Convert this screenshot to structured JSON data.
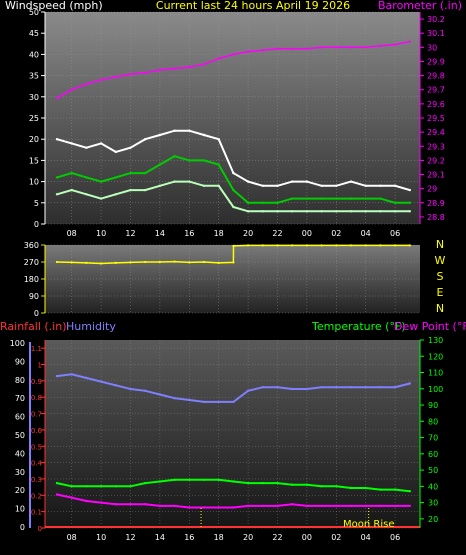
{
  "colors": {
    "white": "#ffffff",
    "yellow": "#ffff00",
    "magenta": "#ff00ff",
    "blue": "#7f7fff",
    "green": "#00ff00",
    "red": "#ff3333",
    "tick": "#dddd00",
    "gust": "#ffffff",
    "avg": "#00cc00",
    "speed": "#bbffbb"
  },
  "chart_data": [
    {
      "type": "line",
      "title": "Current last 24 hours April 19 2026",
      "left_label": "Windspeed (mph)",
      "right_label": "Barometer (.in)",
      "x_ticks": [
        "08",
        "10",
        "12",
        "14",
        "16",
        "18",
        "20",
        "22",
        "00",
        "02",
        "04",
        "06"
      ],
      "y_left_ticks": [
        "0",
        "5",
        "10",
        "15",
        "20",
        "25",
        "30",
        "35",
        "40",
        "45",
        "50"
      ],
      "y_left_range": [
        0,
        50
      ],
      "y_right_ticks": [
        "28.8",
        "28.9",
        "29",
        "29.1",
        "29.2",
        "29.3",
        "29.4",
        "29.5",
        "29.6",
        "29.7",
        "29.8",
        "29.9",
        "30",
        "30.1",
        "30.2"
      ],
      "y_right_range": [
        28.75,
        30.25
      ],
      "series": [
        {
          "axis": "right",
          "x": [
            0,
            1,
            2,
            3,
            4,
            5,
            6,
            7,
            8,
            9,
            10,
            11,
            12,
            13,
            14,
            15,
            16,
            17,
            18,
            19,
            20,
            21,
            22,
            23,
            24
          ],
          "values": [
            29.64,
            29.7,
            29.74,
            29.77,
            29.79,
            29.81,
            29.82,
            29.84,
            29.85,
            29.86,
            29.88,
            29.92,
            29.95,
            29.97,
            29.98,
            29.99,
            29.99,
            29.99,
            30.0,
            30.0,
            30.0,
            30.0,
            30.01,
            30.02,
            30.04
          ]
        },
        {
          "axis": "left",
          "x": [
            0,
            1,
            2,
            3,
            4,
            5,
            6,
            7,
            8,
            9,
            10,
            11,
            12,
            13,
            14,
            15,
            16,
            17,
            18,
            19,
            20,
            21,
            22,
            23,
            24
          ],
          "values": [
            20,
            19,
            18,
            19,
            17,
            18,
            20,
            21,
            22,
            22,
            21,
            20,
            12,
            10,
            9,
            9,
            10,
            10,
            9,
            9,
            10,
            9,
            9,
            9,
            8
          ]
        },
        {
          "axis": "left",
          "x": [
            0,
            1,
            2,
            3,
            4,
            5,
            6,
            7,
            8,
            9,
            10,
            11,
            12,
            13,
            14,
            15,
            16,
            17,
            18,
            19,
            20,
            21,
            22,
            23,
            24
          ],
          "values": [
            11,
            12,
            11,
            10,
            11,
            12,
            12,
            14,
            16,
            15,
            15,
            14,
            8,
            5,
            5,
            5,
            6,
            6,
            6,
            6,
            6,
            6,
            6,
            5,
            5
          ]
        },
        {
          "axis": "left",
          "x": [
            0,
            1,
            2,
            3,
            4,
            5,
            6,
            7,
            8,
            9,
            10,
            11,
            12,
            13,
            14,
            15,
            16,
            17,
            18,
            19,
            20,
            21,
            22,
            23,
            24
          ],
          "values": [
            7,
            8,
            7,
            6,
            7,
            8,
            8,
            9,
            10,
            10,
            9,
            9,
            4,
            3,
            3,
            3,
            3,
            3,
            3,
            3,
            3,
            3,
            3,
            3,
            3
          ]
        }
      ]
    },
    {
      "type": "line",
      "title": "",
      "x_ticks": [
        "08",
        "10",
        "12",
        "14",
        "16",
        "18",
        "20",
        "22",
        "00",
        "02",
        "04",
        "06"
      ],
      "y_ticks": [
        "0",
        "90",
        "180",
        "270",
        "360"
      ],
      "y_range": [
        0,
        360
      ],
      "right_labels": [
        "N",
        "W",
        "S",
        "E",
        "N"
      ],
      "series": [
        {
          "x": [
            0,
            1,
            2,
            3,
            4,
            5,
            6,
            7,
            8,
            9,
            10,
            11,
            12,
            12.01,
            13,
            14,
            15,
            16,
            17,
            18,
            19,
            20,
            21,
            22,
            23,
            24
          ],
          "values": [
            270,
            268,
            265,
            262,
            265,
            268,
            270,
            270,
            272,
            268,
            270,
            265,
            268,
            355,
            358,
            358,
            358,
            358,
            358,
            358,
            358,
            358,
            358,
            358,
            358,
            358
          ]
        }
      ]
    },
    {
      "type": "line",
      "title": "",
      "left_labels": [
        "Rainfall (.in)",
        "Humidity"
      ],
      "right_labels": [
        "Temperature (°F)",
        "Dew Point (°F)"
      ],
      "x_ticks": [
        "08",
        "10",
        "12",
        "14",
        "16",
        "18",
        "20",
        "22",
        "00",
        "02",
        "04",
        "06"
      ],
      "y_rain_ticks": [
        "0",
        "0.1",
        "0.2",
        "0.3",
        "0.4",
        "0.5",
        "0.6",
        "0.7",
        "0.8",
        "0.9",
        "1",
        "1.1"
      ],
      "y_rain_range": [
        0,
        1.15
      ],
      "y_hum_ticks": [
        "0",
        "10",
        "20",
        "30",
        "40",
        "50",
        "60",
        "70",
        "80",
        "90",
        "100"
      ],
      "y_hum_range": [
        0,
        100
      ],
      "y_temp_ticks": [
        "20",
        "30",
        "40",
        "50",
        "60",
        "70",
        "80",
        "90",
        "100",
        "110",
        "120",
        "130"
      ],
      "y_temp_range": [
        15,
        130
      ],
      "annotation": "Moon Rise",
      "series": [
        {
          "axis": "humidity",
          "x": [
            0,
            1,
            2,
            3,
            4,
            5,
            6,
            7,
            8,
            9,
            10,
            11,
            12,
            13,
            14,
            15,
            16,
            17,
            18,
            19,
            20,
            21,
            22,
            23,
            24
          ],
          "values": [
            82,
            83,
            81,
            79,
            77,
            75,
            74,
            72,
            70,
            69,
            68,
            68,
            68,
            74,
            76,
            76,
            75,
            75,
            76,
            76,
            76,
            76,
            76,
            76,
            78
          ]
        },
        {
          "axis": "temperature",
          "x": [
            0,
            1,
            2,
            3,
            4,
            5,
            6,
            7,
            8,
            9,
            10,
            11,
            12,
            13,
            14,
            15,
            16,
            17,
            18,
            19,
            20,
            21,
            22,
            23,
            24
          ],
          "values": [
            42,
            40,
            40,
            40,
            40,
            40,
            42,
            43,
            44,
            44,
            44,
            44,
            43,
            42,
            42,
            42,
            41,
            41,
            40,
            40,
            39,
            39,
            38,
            38,
            37
          ]
        },
        {
          "axis": "temperature",
          "x": [
            0,
            1,
            2,
            3,
            4,
            5,
            6,
            7,
            8,
            9,
            10,
            11,
            12,
            13,
            14,
            15,
            16,
            17,
            18,
            19,
            20,
            21,
            22,
            23,
            24
          ],
          "values": [
            35,
            33,
            31,
            30,
            29,
            29,
            29,
            28,
            28,
            27,
            27,
            27,
            27,
            28,
            28,
            28,
            29,
            28,
            28,
            28,
            28,
            28,
            28,
            28,
            28
          ]
        },
        {
          "axis": "rain",
          "x": [
            0,
            24
          ],
          "values": [
            0,
            0
          ]
        }
      ]
    }
  ]
}
